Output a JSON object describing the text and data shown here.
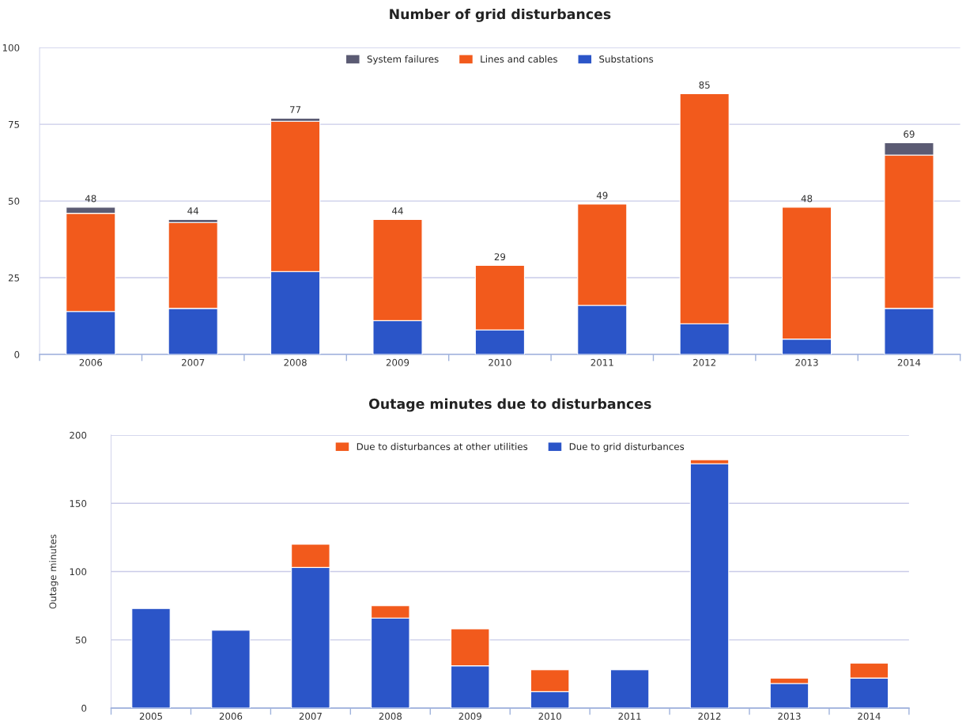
{
  "chart_data": [
    {
      "type": "bar",
      "title": "Number of grid disturbances",
      "categories": [
        "2006",
        "2007",
        "2008",
        "2009",
        "2010",
        "2011",
        "2012",
        "2013",
        "2014"
      ],
      "stacked": true,
      "series": [
        {
          "name": "Substations",
          "color": "#2b55c8",
          "values": [
            14,
            15,
            27,
            11,
            8,
            16,
            10,
            5,
            15
          ]
        },
        {
          "name": "Lines and cables",
          "color": "#f25a1c",
          "values": [
            32,
            28,
            49,
            33,
            21,
            33,
            75,
            43,
            50
          ]
        },
        {
          "name": "System failures",
          "color": "#5b5b73",
          "values": [
            2,
            1,
            1,
            null,
            null,
            null,
            null,
            null,
            4
          ]
        }
      ],
      "totals": [
        "48",
        "44",
        "77",
        "44",
        "29",
        "49",
        "85",
        "48",
        "69"
      ],
      "ylim": [
        0,
        100
      ],
      "yticks": [
        0,
        25,
        50,
        75,
        100
      ],
      "grid": "y",
      "legend": "top"
    },
    {
      "type": "bar",
      "title": "Outage minutes due to disturbances",
      "ylabel": "Outage minutes",
      "categories": [
        "2005",
        "2006",
        "2007",
        "2008",
        "2009",
        "2010",
        "2011",
        "2012",
        "2013",
        "2014"
      ],
      "stacked": true,
      "series": [
        {
          "name": "Due to grid disturbances",
          "color": "#2b55c8",
          "values": [
            73,
            57,
            103,
            66,
            31,
            12,
            28,
            179,
            18,
            22
          ]
        },
        {
          "name": "Due to disturbances at other utilities",
          "color": "#f25a1c",
          "values": [
            null,
            null,
            17,
            9,
            27,
            16,
            null,
            3,
            4,
            11
          ]
        }
      ],
      "ylim": [
        0,
        200
      ],
      "yticks": [
        0,
        50,
        100,
        150,
        200
      ],
      "grid": "y",
      "legend": "top"
    }
  ]
}
